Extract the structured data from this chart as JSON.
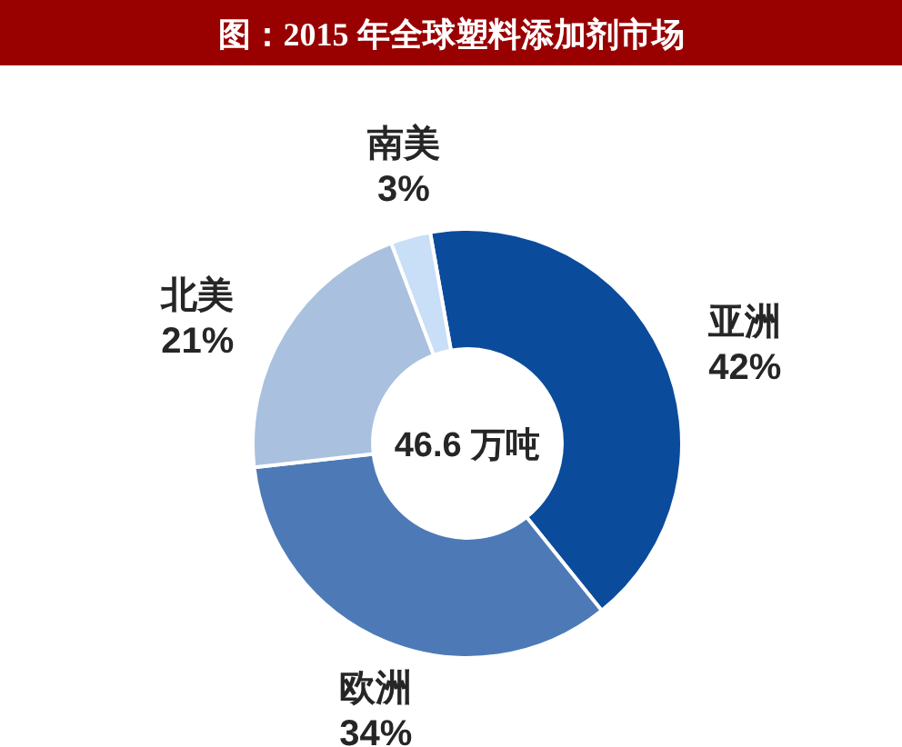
{
  "chart_data": {
    "type": "donut",
    "title": "图：2015 年全球塑料添加剂市场",
    "categories": [
      "亚洲",
      "欧洲",
      "北美",
      "南美"
    ],
    "values": [
      42,
      34,
      21,
      3
    ],
    "colors": [
      "#0b4b9b",
      "#4d7ab7",
      "#a9c1de",
      "#c9def7"
    ],
    "value_labels": [
      "42%",
      "34%",
      "21%",
      "3%"
    ],
    "annotations": [
      "46.6 万吨"
    ]
  }
}
